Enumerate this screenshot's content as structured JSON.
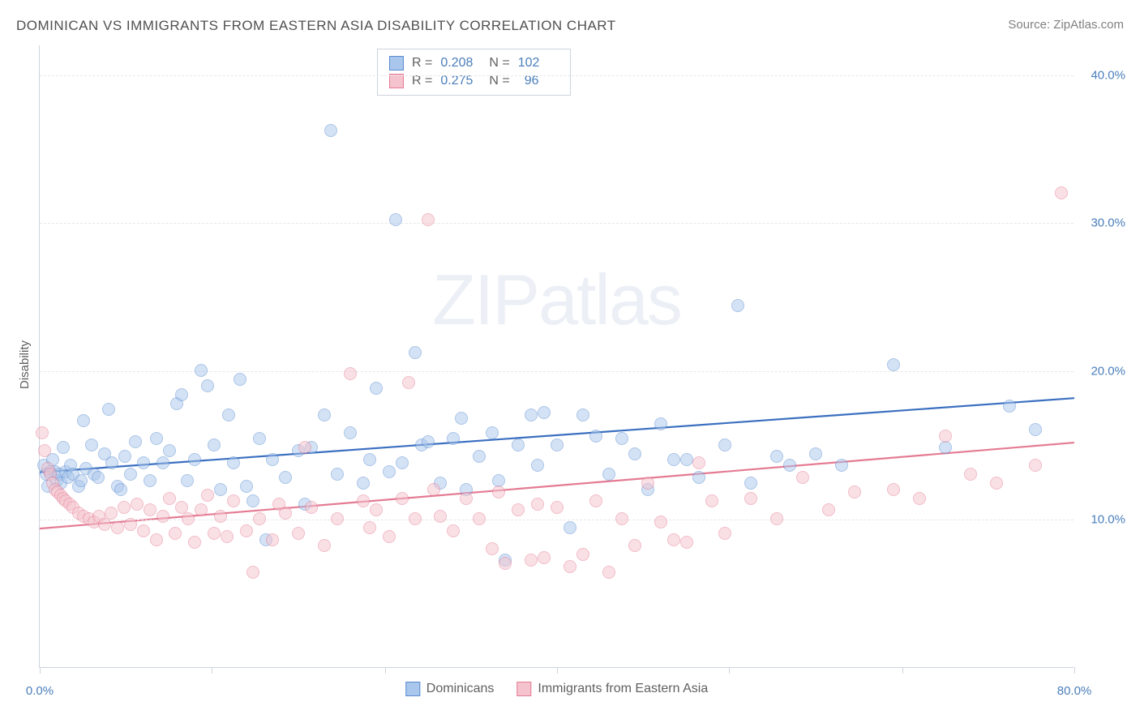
{
  "title": "DOMINICAN VS IMMIGRANTS FROM EASTERN ASIA DISABILITY CORRELATION CHART",
  "source_prefix": "Source: ",
  "source_name": "ZipAtlas.com",
  "watermark": {
    "bold": "ZIP",
    "thin": "atlas"
  },
  "yaxis_title": "Disability",
  "chart": {
    "type": "scatter",
    "xlim": [
      0,
      80
    ],
    "ylim": [
      0,
      42
    ],
    "xticks": [
      0,
      13.3,
      26.7,
      40,
      53.3,
      66.7,
      80
    ],
    "xtick_labels": {
      "0": "0.0%",
      "80": "80.0%"
    },
    "yticks": [
      10,
      20,
      30,
      40
    ],
    "ytick_labels": [
      "10.0%",
      "20.0%",
      "30.0%",
      "40.0%"
    ],
    "grid_color": "#e7e7e7",
    "axis_color": "#cdd4dd",
    "tick_label_color": "#4a7ebb",
    "background_color": "#ffffff",
    "point_radius": 8,
    "point_opacity": 0.5,
    "series": [
      {
        "key": "dominicans",
        "label": "Dominicans",
        "fill": "#a9c6ec",
        "stroke": "#5a8cd0",
        "line_color": "#3b6fc0",
        "R": "0.208",
        "N": "102",
        "trend": {
          "x1": 0,
          "y1": 13.2,
          "x2": 80,
          "y2": 18.2
        },
        "points": [
          [
            0.3,
            13.6
          ],
          [
            0.5,
            13.0
          ],
          [
            0.6,
            12.2
          ],
          [
            0.8,
            13.2
          ],
          [
            1.0,
            14.0
          ],
          [
            1.2,
            13.2
          ],
          [
            1.3,
            12.6
          ],
          [
            1.5,
            13.0
          ],
          [
            1.6,
            12.4
          ],
          [
            1.8,
            14.8
          ],
          [
            2.0,
            13.2
          ],
          [
            2.2,
            12.8
          ],
          [
            2.4,
            13.6
          ],
          [
            2.6,
            13.0
          ],
          [
            3.0,
            12.2
          ],
          [
            3.2,
            12.6
          ],
          [
            3.4,
            16.6
          ],
          [
            3.6,
            13.4
          ],
          [
            4.0,
            15.0
          ],
          [
            4.2,
            13.0
          ],
          [
            4.5,
            12.8
          ],
          [
            5.0,
            14.4
          ],
          [
            5.3,
            17.4
          ],
          [
            5.6,
            13.8
          ],
          [
            6.0,
            12.2
          ],
          [
            6.3,
            12.0
          ],
          [
            6.6,
            14.2
          ],
          [
            7.0,
            13.0
          ],
          [
            7.4,
            15.2
          ],
          [
            8.0,
            13.8
          ],
          [
            8.5,
            12.6
          ],
          [
            9.0,
            15.4
          ],
          [
            9.5,
            13.8
          ],
          [
            10.0,
            14.6
          ],
          [
            10.6,
            17.8
          ],
          [
            11.0,
            18.4
          ],
          [
            11.4,
            12.6
          ],
          [
            12.0,
            14.0
          ],
          [
            12.5,
            20.0
          ],
          [
            13.0,
            19.0
          ],
          [
            13.5,
            15.0
          ],
          [
            14.0,
            12.0
          ],
          [
            14.6,
            17.0
          ],
          [
            15.0,
            13.8
          ],
          [
            15.5,
            19.4
          ],
          [
            16.0,
            12.2
          ],
          [
            16.5,
            11.2
          ],
          [
            17.0,
            15.4
          ],
          [
            17.5,
            8.6
          ],
          [
            18.0,
            14.0
          ],
          [
            19.0,
            12.8
          ],
          [
            20.0,
            14.6
          ],
          [
            20.5,
            11.0
          ],
          [
            21.0,
            14.8
          ],
          [
            22.0,
            17.0
          ],
          [
            22.5,
            36.2
          ],
          [
            23.0,
            13.0
          ],
          [
            24.0,
            15.8
          ],
          [
            25.0,
            12.4
          ],
          [
            25.5,
            14.0
          ],
          [
            26.0,
            18.8
          ],
          [
            27.0,
            13.2
          ],
          [
            27.5,
            30.2
          ],
          [
            28.0,
            13.8
          ],
          [
            29.0,
            21.2
          ],
          [
            29.5,
            15.0
          ],
          [
            30.0,
            15.2
          ],
          [
            31.0,
            12.4
          ],
          [
            32.0,
            15.4
          ],
          [
            32.6,
            16.8
          ],
          [
            33.0,
            12.0
          ],
          [
            34.0,
            14.2
          ],
          [
            35.0,
            15.8
          ],
          [
            35.5,
            12.6
          ],
          [
            36.0,
            7.2
          ],
          [
            37.0,
            15.0
          ],
          [
            38.0,
            17.0
          ],
          [
            38.5,
            13.6
          ],
          [
            39.0,
            17.2
          ],
          [
            40.0,
            15.0
          ],
          [
            41.0,
            9.4
          ],
          [
            42.0,
            17.0
          ],
          [
            43.0,
            15.6
          ],
          [
            44.0,
            13.0
          ],
          [
            45.0,
            15.4
          ],
          [
            46.0,
            14.4
          ],
          [
            47.0,
            12.0
          ],
          [
            48.0,
            16.4
          ],
          [
            49.0,
            14.0
          ],
          [
            50.0,
            14.0
          ],
          [
            51.0,
            12.8
          ],
          [
            53.0,
            15.0
          ],
          [
            54.0,
            24.4
          ],
          [
            55.0,
            12.4
          ],
          [
            57.0,
            14.2
          ],
          [
            58.0,
            13.6
          ],
          [
            60.0,
            14.4
          ],
          [
            62.0,
            13.6
          ],
          [
            66.0,
            20.4
          ],
          [
            70.0,
            14.8
          ],
          [
            75.0,
            17.6
          ],
          [
            77.0,
            16.0
          ]
        ]
      },
      {
        "key": "eastern_asia",
        "label": "Immigrants from Eastern Asia",
        "fill": "#f5c3cd",
        "stroke": "#e47b93",
        "line_color": "#e47b93",
        "R": "0.275",
        "N": "96",
        "trend": {
          "x1": 0,
          "y1": 9.4,
          "x2": 80,
          "y2": 15.2
        },
        "points": [
          [
            0.2,
            15.8
          ],
          [
            0.4,
            14.6
          ],
          [
            0.6,
            13.4
          ],
          [
            0.8,
            13.0
          ],
          [
            1.0,
            12.4
          ],
          [
            1.2,
            12.0
          ],
          [
            1.4,
            11.8
          ],
          [
            1.6,
            11.6
          ],
          [
            1.8,
            11.4
          ],
          [
            2.0,
            11.2
          ],
          [
            2.3,
            11.0
          ],
          [
            2.6,
            10.8
          ],
          [
            3.0,
            10.4
          ],
          [
            3.4,
            10.2
          ],
          [
            3.8,
            10.0
          ],
          [
            4.2,
            9.8
          ],
          [
            4.6,
            10.2
          ],
          [
            5.0,
            9.6
          ],
          [
            5.5,
            10.4
          ],
          [
            6.0,
            9.4
          ],
          [
            6.5,
            10.8
          ],
          [
            7.0,
            9.6
          ],
          [
            7.5,
            11.0
          ],
          [
            8.0,
            9.2
          ],
          [
            8.5,
            10.6
          ],
          [
            9.0,
            8.6
          ],
          [
            9.5,
            10.2
          ],
          [
            10.0,
            11.4
          ],
          [
            10.5,
            9.0
          ],
          [
            11.0,
            10.8
          ],
          [
            11.5,
            10.0
          ],
          [
            12.0,
            8.4
          ],
          [
            12.5,
            10.6
          ],
          [
            13.0,
            11.6
          ],
          [
            13.5,
            9.0
          ],
          [
            14.0,
            10.2
          ],
          [
            14.5,
            8.8
          ],
          [
            15.0,
            11.2
          ],
          [
            16.0,
            9.2
          ],
          [
            16.5,
            6.4
          ],
          [
            17.0,
            10.0
          ],
          [
            18.0,
            8.6
          ],
          [
            18.5,
            11.0
          ],
          [
            19.0,
            10.4
          ],
          [
            20.0,
            9.0
          ],
          [
            20.5,
            14.8
          ],
          [
            21.0,
            10.8
          ],
          [
            22.0,
            8.2
          ],
          [
            23.0,
            10.0
          ],
          [
            24.0,
            19.8
          ],
          [
            25.0,
            11.2
          ],
          [
            25.5,
            9.4
          ],
          [
            26.0,
            10.6
          ],
          [
            27.0,
            8.8
          ],
          [
            28.0,
            11.4
          ],
          [
            28.5,
            19.2
          ],
          [
            29.0,
            10.0
          ],
          [
            30.0,
            30.2
          ],
          [
            30.5,
            12.0
          ],
          [
            31.0,
            10.2
          ],
          [
            32.0,
            9.2
          ],
          [
            33.0,
            11.4
          ],
          [
            34.0,
            10.0
          ],
          [
            35.0,
            8.0
          ],
          [
            35.5,
            11.8
          ],
          [
            36.0,
            7.0
          ],
          [
            37.0,
            10.6
          ],
          [
            38.0,
            7.2
          ],
          [
            38.5,
            11.0
          ],
          [
            39.0,
            7.4
          ],
          [
            40.0,
            10.8
          ],
          [
            41.0,
            6.8
          ],
          [
            42.0,
            7.6
          ],
          [
            43.0,
            11.2
          ],
          [
            44.0,
            6.4
          ],
          [
            45.0,
            10.0
          ],
          [
            46.0,
            8.2
          ],
          [
            47.0,
            12.4
          ],
          [
            48.0,
            9.8
          ],
          [
            49.0,
            8.6
          ],
          [
            50.0,
            8.4
          ],
          [
            51.0,
            13.8
          ],
          [
            52.0,
            11.2
          ],
          [
            53.0,
            9.0
          ],
          [
            55.0,
            11.4
          ],
          [
            57.0,
            10.0
          ],
          [
            59.0,
            12.8
          ],
          [
            61.0,
            10.6
          ],
          [
            63.0,
            11.8
          ],
          [
            66.0,
            12.0
          ],
          [
            68.0,
            11.4
          ],
          [
            70.0,
            15.6
          ],
          [
            72.0,
            13.0
          ],
          [
            74.0,
            12.4
          ],
          [
            77.0,
            13.6
          ],
          [
            79.0,
            32.0
          ]
        ]
      }
    ]
  }
}
